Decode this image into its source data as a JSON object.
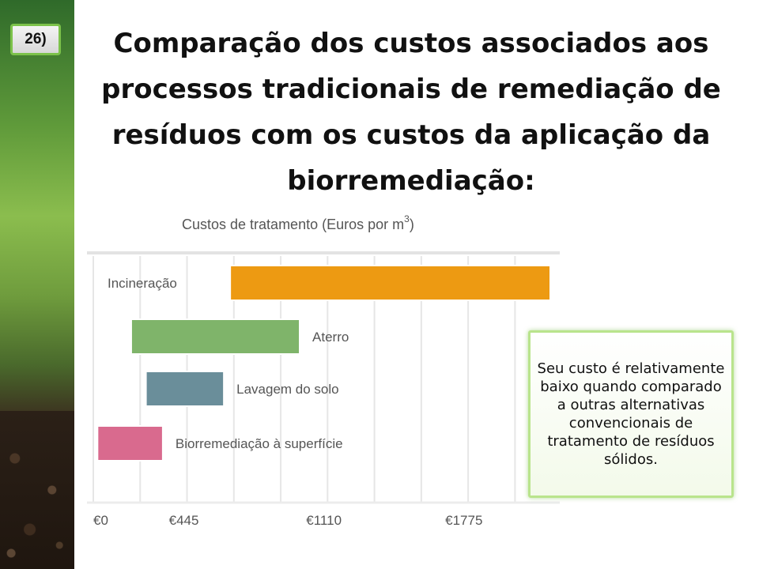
{
  "slide_number": "26)",
  "title": "Comparação dos custos associados aos processos tradicionais de remediação de resíduos com os custos da aplicação da biorremediação:",
  "callout_text": "Seu custo é relativamente baixo quando comparado a outras alternativas convencionais de tratamento de resíduos sólidos.",
  "chart_data": {
    "type": "bar",
    "orientation": "horizontal-range",
    "title_main": "Custos de tratamento (Euros por m",
    "title_sup": "3",
    "title_end": ")",
    "x_ticks": [
      {
        "value": 0,
        "label": "€0"
      },
      {
        "value": 445,
        "label": "€445"
      },
      {
        "value": 1110,
        "label": "€1110"
      },
      {
        "value": 1775,
        "label": "€1775"
      }
    ],
    "xlim": [
      0,
      2170
    ],
    "grid": true,
    "series": [
      {
        "label": "Incineração",
        "start": 650,
        "end": 2170,
        "color": "#ed9a12",
        "label_position": "left"
      },
      {
        "label": "Aterro",
        "start": 180,
        "end": 980,
        "color": "#7fb46a",
        "label_position": "right"
      },
      {
        "label": "Lavagem do solo",
        "start": 250,
        "end": 620,
        "color": "#6a8e9a",
        "label_position": "right"
      },
      {
        "label": "Biorremediação à superfície",
        "start": 20,
        "end": 330,
        "color": "#d96a8e",
        "label_position": "right"
      }
    ]
  }
}
